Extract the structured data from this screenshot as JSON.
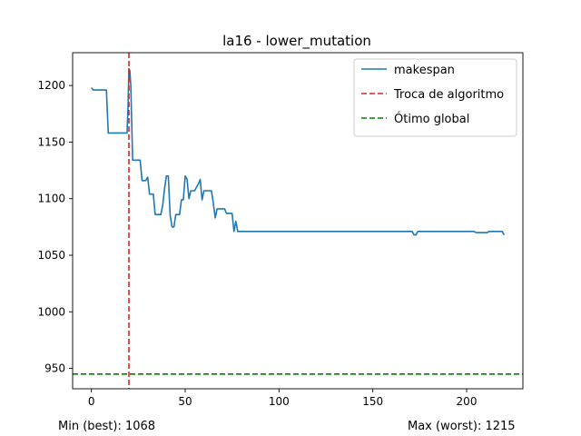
{
  "chart_data": {
    "type": "line",
    "title": "la16 - lower_mutation",
    "xlabel": "",
    "ylabel": "",
    "xlim": [
      -10,
      230
    ],
    "ylim": [
      932,
      1229
    ],
    "xticks": [
      0,
      50,
      100,
      150,
      200
    ],
    "yticks": [
      950,
      1000,
      1050,
      1100,
      1150,
      1200
    ],
    "grid": false,
    "legend_position": "top-right",
    "series": [
      {
        "name": "makespan",
        "color": "#1f77b4",
        "style": "solid",
        "x": [
          0,
          1,
          2,
          3,
          4,
          5,
          6,
          7,
          8,
          9,
          10,
          11,
          12,
          13,
          14,
          15,
          16,
          17,
          18,
          19,
          19.5,
          20,
          20.5,
          21,
          22,
          23,
          24,
          25,
          26,
          27,
          28,
          29,
          30,
          31,
          32,
          33,
          34,
          35,
          36,
          37,
          38,
          39,
          40,
          41,
          42,
          43,
          44,
          45,
          46,
          47,
          48,
          49,
          50,
          51,
          52,
          53,
          54,
          55,
          56,
          57,
          58,
          59,
          60,
          61,
          62,
          63,
          64,
          65,
          66,
          67,
          68,
          69,
          70,
          71,
          72,
          73,
          74,
          75,
          76,
          77,
          78,
          79,
          80,
          100,
          120,
          140,
          160,
          170,
          171,
          172,
          173,
          174,
          180,
          200,
          204,
          205,
          210,
          211,
          212,
          215,
          218,
          219,
          220
        ],
        "y": [
          1198,
          1196,
          1196,
          1196,
          1196,
          1196,
          1196,
          1196,
          1196,
          1158,
          1158,
          1158,
          1158,
          1158,
          1158,
          1158,
          1158,
          1158,
          1158,
          1158,
          1180,
          1215,
          1213,
          1200,
          1134,
          1134,
          1134,
          1134,
          1134,
          1116,
          1116,
          1116,
          1119,
          1104,
          1104,
          1104,
          1086,
          1086,
          1086,
          1086,
          1094,
          1109,
          1120,
          1120,
          1085,
          1075,
          1075,
          1086,
          1086,
          1086,
          1099,
          1099,
          1120,
          1117,
          1100,
          1107,
          1107,
          1107,
          1110,
          1113,
          1117,
          1099,
          1107,
          1107,
          1107,
          1107,
          1107,
          1096,
          1083,
          1091,
          1091,
          1091,
          1091,
          1091,
          1087,
          1087,
          1087,
          1087,
          1071,
          1080,
          1071,
          1071,
          1071,
          1071,
          1071,
          1071,
          1071,
          1071,
          1071,
          1068,
          1068,
          1071,
          1071,
          1071,
          1071,
          1070,
          1070,
          1070,
          1071,
          1071,
          1071,
          1071,
          1068
        ]
      },
      {
        "name": "Troca de algoritmo",
        "color": "#d62728",
        "style": "dashed",
        "orientation": "vertical",
        "x": 20
      },
      {
        "name": "Ótimo global",
        "color": "#008000",
        "style": "dashed",
        "orientation": "horizontal",
        "y": 945
      }
    ]
  },
  "footer": {
    "min_text": "Min (best): 1068",
    "max_text": "Max (worst): 1215"
  }
}
